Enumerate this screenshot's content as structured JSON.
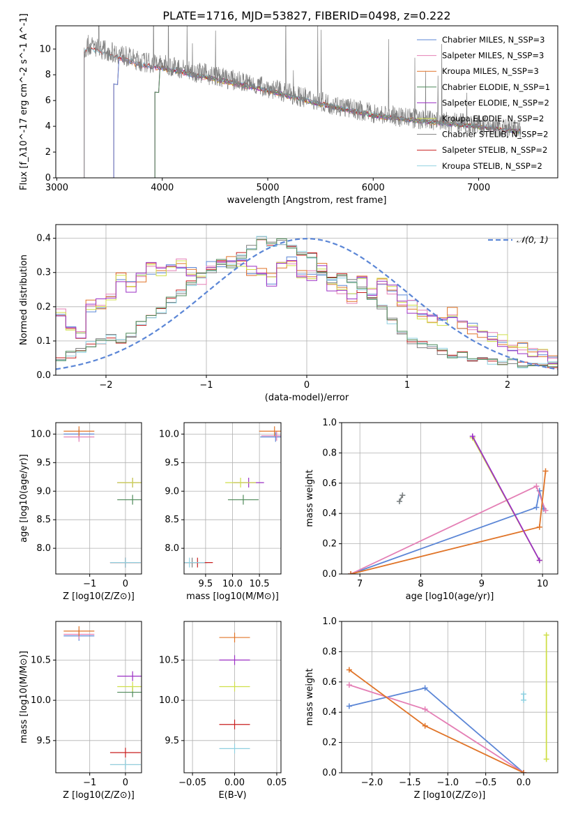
{
  "figure": {
    "title": "PLATE=1716, MJD=53827, FIBERID=0498, z=0.222"
  },
  "colors": {
    "Chabrier MILES": "#5b86d6",
    "Salpeter MILES": "#e47fb5",
    "Kroupa MILES": "#e07428",
    "Chabrier ELODIE": "#4f8a5a",
    "Salpeter ELODIE": "#9b2fc4",
    "Kroupa ELODIE": "#cfdf4a",
    "Chabrier STELIB": "#7f7f7f",
    "Salpeter STELIB": "#c81e1e",
    "Kroupa STELIB": "#8fd0e0",
    "normal": "#5b86d6"
  },
  "chart_data": [
    {
      "panel": "spectrum",
      "type": "line",
      "xlabel": "wavelength [Angstrom, rest frame]",
      "ylabel": "Flux [f_λ10^-17 erg cm^-2 s^-1 A^-1]",
      "xlim": [
        2990,
        7750
      ],
      "ylim": [
        0,
        11.8
      ],
      "xticks": [
        3000,
        4000,
        5000,
        6000,
        7000
      ],
      "yticks": [
        0,
        2,
        4,
        6,
        8,
        10
      ],
      "legend_position": "top-right",
      "legend": [
        "Chabrier MILES, N_SSP=3",
        "Salpeter MILES, N_SSP=3",
        "Kroupa MILES, N_SSP=3",
        "Chabrier ELODIE, N_SSP=1",
        "Salpeter ELODIE, N_SSP=2",
        "Kroupa ELODIE, N_SSP=2",
        "Chabrier STELIB, N_SSP=2",
        "Salpeter STELIB, N_SSP=2",
        "Kroupa STELIB, N_SSP=2"
      ],
      "model_start": {
        "MILES": 3540,
        "ELODIE": 3930,
        "STELIB": 3260
      },
      "continuum": {
        "x": [
          3260,
          3300,
          3500,
          3600,
          3800,
          4000,
          4500,
          5000,
          5500,
          6000,
          6500,
          7000,
          7400
        ],
        "y": [
          10.0,
          10.3,
          9.8,
          9.6,
          9.0,
          8.8,
          7.9,
          7.0,
          5.9,
          5.0,
          4.5,
          4.1,
          3.7
        ]
      },
      "data_range": [
        3260,
        7400
      ]
    },
    {
      "panel": "residuals",
      "type": "line",
      "xlabel": "(data-model)/error",
      "ylabel": "Normed distribution",
      "xlim": [
        -2.5,
        2.5
      ],
      "ylim": [
        0,
        0.44
      ],
      "xticks": [
        -2,
        -1,
        0,
        1,
        2
      ],
      "yticks": [
        0.0,
        0.1,
        0.2,
        0.3,
        0.4
      ],
      "legend_position": "top-right",
      "normal_label": "𝒩(0, 1)",
      "bin_width": 0.1,
      "group_a": [
        0.18,
        0.15,
        0.12,
        0.2,
        0.21,
        0.23,
        0.28,
        0.26,
        0.29,
        0.31,
        0.3,
        0.31,
        0.32,
        0.3,
        0.28,
        0.33,
        0.32,
        0.34,
        0.33,
        0.3,
        0.31,
        0.28,
        0.32,
        0.33,
        0.3,
        0.29,
        0.31,
        0.26,
        0.25,
        0.22,
        0.27,
        0.24,
        0.28,
        0.25,
        0.22,
        0.2,
        0.18,
        0.17,
        0.16,
        0.18,
        0.15,
        0.14,
        0.12,
        0.11,
        0.1,
        0.09,
        0.08,
        0.07,
        0.06,
        0.05
      ],
      "group_b": [
        0.05,
        0.06,
        0.07,
        0.09,
        0.1,
        0.11,
        0.1,
        0.12,
        0.15,
        0.17,
        0.19,
        0.22,
        0.24,
        0.27,
        0.29,
        0.3,
        0.33,
        0.32,
        0.35,
        0.37,
        0.4,
        0.38,
        0.39,
        0.37,
        0.36,
        0.35,
        0.3,
        0.28,
        0.29,
        0.28,
        0.25,
        0.22,
        0.2,
        0.16,
        0.12,
        0.1,
        0.09,
        0.08,
        0.07,
        0.06,
        0.06,
        0.05,
        0.05,
        0.04,
        0.04,
        0.04,
        0.03,
        0.03,
        0.03,
        0.03
      ]
    },
    {
      "panel": "Z-age",
      "type": "scatter",
      "xlabel": "Z [log10(Z/Z⊙)]",
      "ylabel": "age  [log10(age/yr)]",
      "xlim": [
        -1.95,
        0.45
      ],
      "ylim": [
        7.55,
        10.2
      ],
      "xticks": [
        -1,
        0
      ],
      "yticks": [
        8.0,
        8.5,
        9.0,
        9.5,
        10.0
      ],
      "points": [
        {
          "series": "Chabrier MILES",
          "x": -1.3,
          "y": 10.0
        },
        {
          "series": "Salpeter MILES",
          "x": -1.3,
          "y": 9.95
        },
        {
          "series": "Kroupa MILES",
          "x": -1.3,
          "y": 10.05
        },
        {
          "series": "Chabrier ELODIE",
          "x": 0.2,
          "y": 8.85
        },
        {
          "series": "Salpeter ELODIE",
          "x": 0.2,
          "y": 9.15
        },
        {
          "series": "Kroupa ELODIE",
          "x": 0.2,
          "y": 9.15
        },
        {
          "series": "Chabrier STELIB",
          "x": 0.0,
          "y": 7.75
        },
        {
          "series": "Salpeter STELIB",
          "x": 0.0,
          "y": 7.75
        },
        {
          "series": "Kroupa STELIB",
          "x": 0.0,
          "y": 7.75
        }
      ]
    },
    {
      "panel": "mass-age",
      "type": "scatter",
      "xlabel": "mass [log10(M/M⊙)]",
      "ylabel": "",
      "xlim": [
        9.1,
        10.9
      ],
      "ylim": [
        7.55,
        10.2
      ],
      "xticks": [
        9.5,
        10.0,
        10.5
      ],
      "yticks": [
        8.0,
        8.5,
        9.0,
        9.5,
        10.0
      ],
      "points": [
        {
          "series": "Chabrier MILES",
          "x": 10.8,
          "y": 9.95
        },
        {
          "series": "Salpeter MILES",
          "x": 10.82,
          "y": 9.97
        },
        {
          "series": "Kroupa MILES",
          "x": 10.78,
          "y": 10.05
        },
        {
          "series": "Chabrier ELODIE",
          "x": 10.2,
          "y": 8.85
        },
        {
          "series": "Salpeter ELODIE",
          "x": 10.3,
          "y": 9.15
        },
        {
          "series": "Kroupa ELODIE",
          "x": 10.15,
          "y": 9.15
        },
        {
          "series": "Chabrier STELIB",
          "x": 9.25,
          "y": 7.75
        },
        {
          "series": "Salpeter STELIB",
          "x": 9.35,
          "y": 7.75
        },
        {
          "series": "Kroupa STELIB",
          "x": 9.2,
          "y": 7.75
        }
      ]
    },
    {
      "panel": "age-weight",
      "type": "line",
      "xlabel": "age  [log10(age/yr)]",
      "ylabel": "mass weight",
      "xlim": [
        6.7,
        10.25
      ],
      "ylim": [
        0,
        1.0
      ],
      "xticks": [
        7,
        8,
        9,
        10
      ],
      "yticks": [
        0.0,
        0.2,
        0.4,
        0.6,
        0.8,
        1.0
      ],
      "series": [
        {
          "name": "Chabrier MILES",
          "x": [
            6.85,
            9.9,
            9.95,
            10.02
          ],
          "y": [
            0.0,
            0.44,
            0.55,
            0.43
          ]
        },
        {
          "name": "Salpeter MILES",
          "x": [
            6.85,
            9.9,
            10.05
          ],
          "y": [
            0.0,
            0.58,
            0.42
          ]
        },
        {
          "name": "Kroupa MILES",
          "x": [
            6.85,
            9.95,
            10.05
          ],
          "y": [
            0.0,
            0.31,
            0.68
          ]
        },
        {
          "name": "Kroupa ELODIE",
          "x": [
            8.85,
            9.95
          ],
          "y": [
            0.9,
            0.09
          ]
        },
        {
          "name": "Salpeter ELODIE",
          "x": [
            8.85,
            9.95
          ],
          "y": [
            0.91,
            0.09
          ]
        },
        {
          "name": "Kroupa STELIB",
          "x": [
            7.65,
            7.7
          ],
          "y": [
            0.48,
            0.52
          ]
        },
        {
          "name": "Chabrier STELIB",
          "x": [
            7.65,
            7.7
          ],
          "y": [
            0.48,
            0.52
          ]
        }
      ]
    },
    {
      "panel": "Z-mass",
      "type": "scatter",
      "xlabel": "Z [log10(Z/Z⊙)]",
      "ylabel": "mass [log10(M/M⊙)]",
      "xlim": [
        -1.95,
        0.45
      ],
      "ylim": [
        9.1,
        10.98
      ],
      "xticks": [
        -1,
        0
      ],
      "yticks": [
        9.5,
        10.0,
        10.5
      ],
      "points": [
        {
          "series": "Chabrier MILES",
          "x": -1.3,
          "y": 10.8
        },
        {
          "series": "Salpeter MILES",
          "x": -1.3,
          "y": 10.82
        },
        {
          "series": "Kroupa MILES",
          "x": -1.3,
          "y": 10.86
        },
        {
          "series": "Chabrier ELODIE",
          "x": 0.2,
          "y": 10.1
        },
        {
          "series": "Salpeter ELODIE",
          "x": 0.2,
          "y": 10.3
        },
        {
          "series": "Kroupa ELODIE",
          "x": 0.2,
          "y": 10.17
        },
        {
          "series": "Salpeter STELIB",
          "x": 0.0,
          "y": 9.35
        },
        {
          "series": "Chabrier STELIB",
          "x": 0.0,
          "y": 9.2
        },
        {
          "series": "Kroupa STELIB",
          "x": 0.0,
          "y": 9.2
        }
      ]
    },
    {
      "panel": "ebv-mass",
      "type": "scatter",
      "xlabel": "E(B-V)",
      "ylabel": "",
      "xlim": [
        -0.06,
        0.055
      ],
      "ylim": [
        9.1,
        10.98
      ],
      "xticks": [
        -0.05,
        0.0,
        0.05
      ],
      "yticks": [
        9.5,
        10.0,
        10.5
      ],
      "points": [
        {
          "series": "Kroupa MILES",
          "x": 0.0,
          "y": 10.78
        },
        {
          "series": "Salpeter ELODIE",
          "x": 0.0,
          "y": 10.5
        },
        {
          "series": "Kroupa ELODIE",
          "x": 0.0,
          "y": 10.17
        },
        {
          "series": "Salpeter STELIB",
          "x": 0.0,
          "y": 9.7
        },
        {
          "series": "Kroupa STELIB",
          "x": 0.0,
          "y": 9.4
        }
      ]
    },
    {
      "panel": "Z-weight",
      "type": "line",
      "xlabel": "Z [log10(Z/Z⊙)]",
      "ylabel": "mass weight",
      "xlim": [
        -2.4,
        0.45
      ],
      "ylim": [
        0,
        1.0
      ],
      "xticks": [
        -2.0,
        -1.5,
        -1.0,
        -0.5,
        0.0
      ],
      "yticks": [
        0.0,
        0.2,
        0.4,
        0.6,
        0.8,
        1.0
      ],
      "series": [
        {
          "name": "Chabrier MILES",
          "x": [
            -2.3,
            -1.3,
            0.0
          ],
          "y": [
            0.44,
            0.56,
            0.0
          ]
        },
        {
          "name": "Salpeter MILES",
          "x": [
            -2.3,
            -1.3,
            0.0
          ],
          "y": [
            0.58,
            0.42,
            0.0
          ]
        },
        {
          "name": "Kroupa MILES",
          "x": [
            -2.3,
            -1.3,
            0.0
          ],
          "y": [
            0.68,
            0.31,
            0.0
          ]
        },
        {
          "name": "Kroupa ELODIE",
          "x": [
            0.3,
            0.3
          ],
          "y": [
            0.09,
            0.91
          ]
        },
        {
          "name": "Kroupa STELIB",
          "x": [
            0.0,
            0.0
          ],
          "y": [
            0.48,
            0.52
          ]
        }
      ]
    }
  ]
}
